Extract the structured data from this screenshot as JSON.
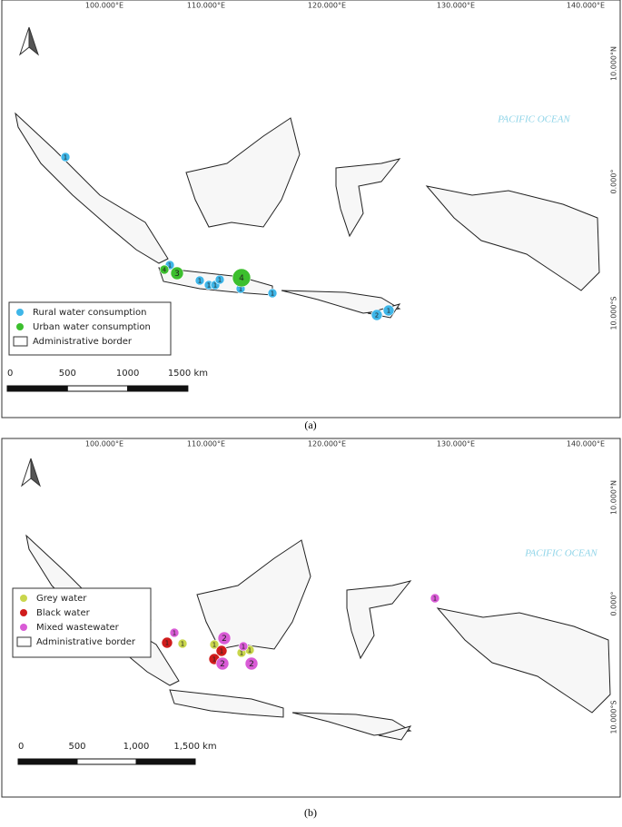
{
  "panels": [
    {
      "lon_labels": [
        "100.000°E",
        "110.000°E",
        "120.000°E",
        "130.000°E",
        "140.000°E"
      ],
      "lat_labels": [
        "10.000°N",
        "0.000°",
        "10.000°S"
      ],
      "ocean": "PACIFIC OCEAN",
      "legend": [
        {
          "name": "Rural water consumption",
          "color": "#3fb6e8",
          "points": [
            "1",
            "1",
            "1",
            "1",
            "1",
            "1",
            "1",
            "1",
            "2",
            "1"
          ]
        },
        {
          "name": "Urban water consumption",
          "color": "#3cbf2e",
          "points": [
            "4",
            "3",
            "4"
          ]
        },
        {
          "name": "Administrative border"
        }
      ],
      "scale_labels": [
        "0",
        "500",
        "1000",
        "1500 km"
      ],
      "caption": "(a)"
    },
    {
      "lon_labels": [
        "100.000°E",
        "110.000°E",
        "120.000°E",
        "130.000°E",
        "140.000°E"
      ],
      "lat_labels": [
        "10.000°N",
        "0.000°",
        "10.000°S"
      ],
      "ocean": "PACIFIC OCEAN",
      "legend": [
        {
          "name": "Grey water",
          "color": "#c9d64c",
          "points": [
            "1",
            "1",
            "1",
            "1",
            "1"
          ]
        },
        {
          "name": "Black water",
          "color": "#d01c1c",
          "points": [
            "1",
            "1",
            "1"
          ]
        },
        {
          "name": "Mixed wastewater",
          "color": "#d95bd6",
          "points": [
            "1",
            "1",
            "1",
            "2",
            "2",
            "2",
            "1"
          ]
        },
        {
          "name": "Administrative border"
        }
      ],
      "scale_labels": [
        "0",
        "500",
        "1,000",
        "1,500 km"
      ],
      "caption": "(b)"
    }
  ]
}
